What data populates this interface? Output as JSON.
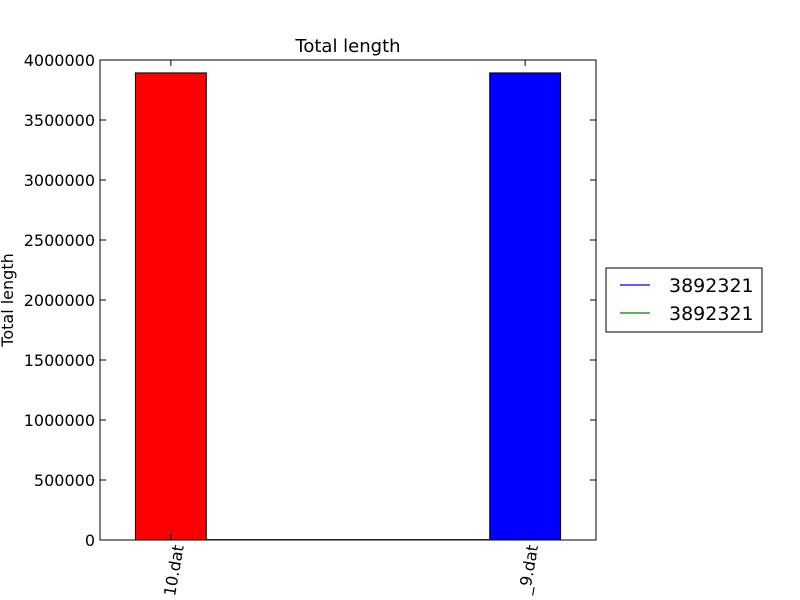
{
  "chart_data": {
    "type": "bar",
    "title": "Total length",
    "xlabel": "",
    "ylabel": "Total length",
    "ylim": [
      0,
      4000000
    ],
    "yticks": [
      0,
      500000,
      1000000,
      1500000,
      2000000,
      2500000,
      3000000,
      3500000,
      4000000
    ],
    "ytick_labels": [
      "0",
      "500000",
      "1000000",
      "1500000",
      "2000000",
      "2500000",
      "3000000",
      "3500000",
      "4000000"
    ],
    "categories": [
      "10.dat",
      "_9.dat"
    ],
    "bars": [
      {
        "category": "10.dat",
        "value": 3892321,
        "color": "#ff0000"
      },
      {
        "category": "_9.dat",
        "value": 3892321,
        "color": "#0000ff"
      }
    ],
    "line": {
      "value": 0,
      "color": "#008000"
    },
    "legend": {
      "position": "right",
      "entries": [
        {
          "label": "3892321",
          "color": "#0000ff"
        },
        {
          "label": "3892321",
          "color": "#008000"
        }
      ]
    },
    "grid": false
  }
}
